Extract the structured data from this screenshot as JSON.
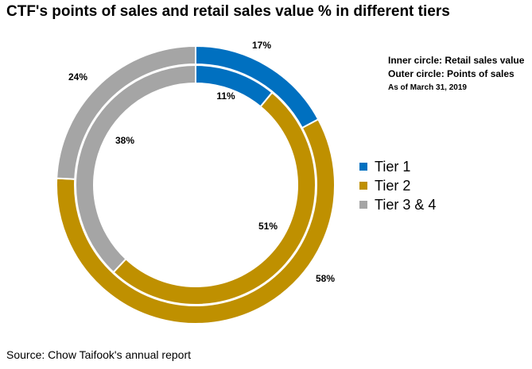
{
  "title": "CTF's points of sales and retail sales value % in different tiers",
  "notes": {
    "inner": "Inner circle: Retail sales value",
    "outer": "Outer circle: Points of sales",
    "date": "As of March 31, 2019"
  },
  "source": "Source: Chow Taifook's annual report",
  "chart_data": {
    "type": "pie",
    "subtype": "nested-donut",
    "categories": [
      "Tier 1",
      "Tier 2",
      "Tier 3 & 4"
    ],
    "colors": [
      "#0070C0",
      "#BF9000",
      "#A5A5A5"
    ],
    "series": [
      {
        "ring": "outer",
        "values": [
          17,
          58,
          24
        ],
        "labels": [
          "17%",
          "58%",
          "24%"
        ]
      },
      {
        "ring": "inner",
        "values": [
          11,
          51,
          38
        ],
        "labels": [
          "11%",
          "51%",
          "38%"
        ]
      }
    ],
    "legend_position": "right"
  }
}
